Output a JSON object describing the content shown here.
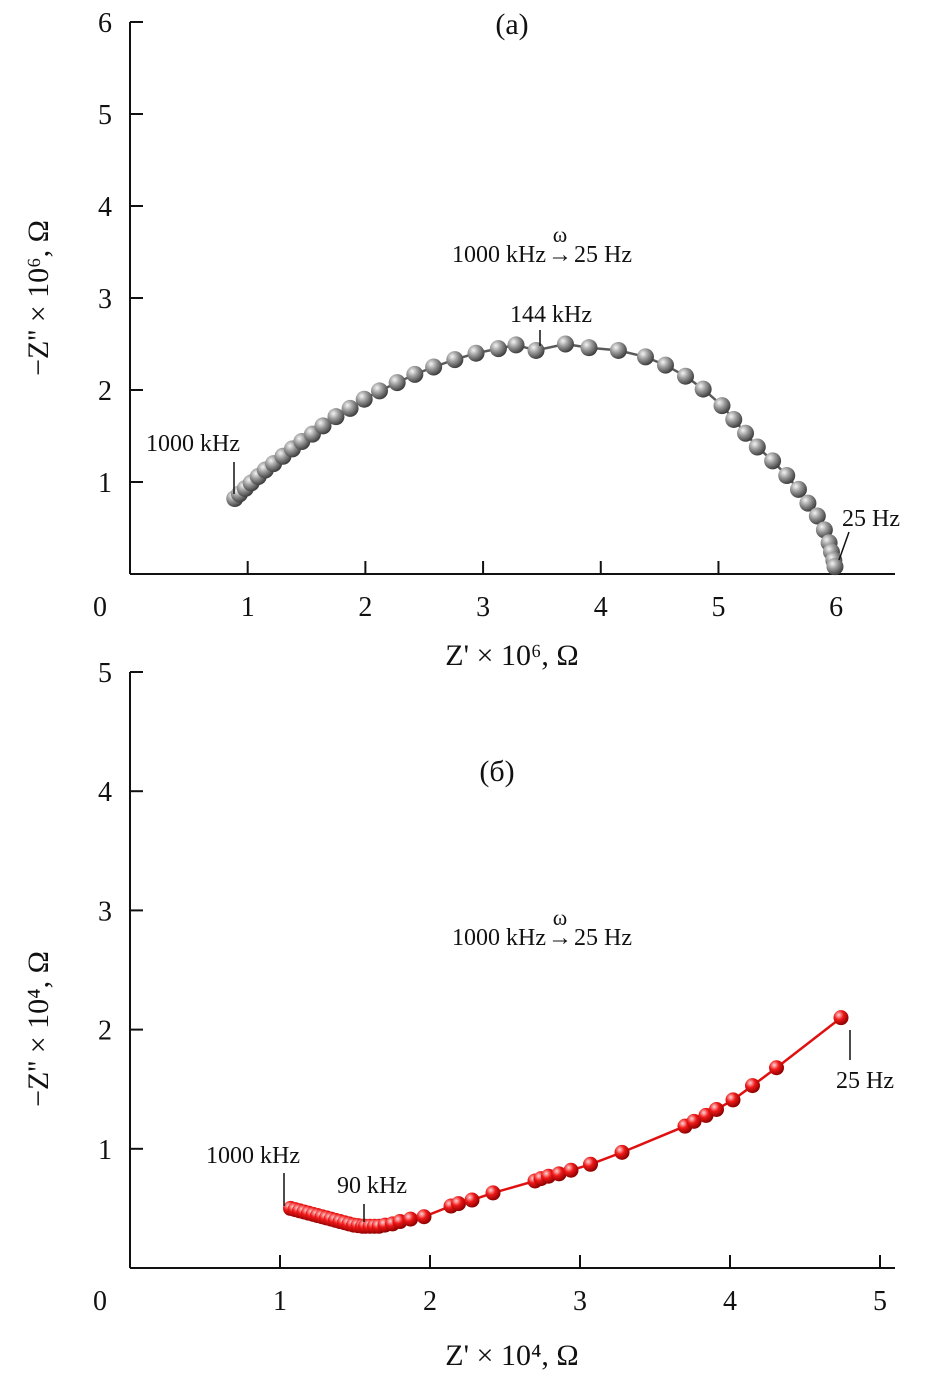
{
  "chart_data": [
    {
      "type": "scatter",
      "panel_label": "(a)",
      "xlabel": "Z' × 10⁶, Ω",
      "ylabel": "−Z'' × 10⁶, Ω",
      "xlim": [
        0,
        6.5
      ],
      "ylim": [
        0,
        6
      ],
      "origin_label": "0",
      "xticks": [
        1,
        2,
        3,
        4,
        5,
        6
      ],
      "yticks": [
        1,
        2,
        3,
        4,
        5,
        6
      ],
      "xtick_labels": [
        "1",
        "2",
        "3",
        "4",
        "5",
        "6"
      ],
      "ytick_labels": [
        "1",
        "2",
        "3",
        "4",
        "5",
        "6"
      ],
      "frequency_range": {
        "from": "1000 kHz",
        "arrow": "→",
        "to": "25 Hz",
        "symbol": "ω"
      },
      "annotations": [
        {
          "text": "1000 kHz",
          "x": 0.89,
          "y": 0.82
        },
        {
          "text": "144 kHz",
          "x": 3.45,
          "y": 2.43
        },
        {
          "text": "25 Hz",
          "x": 5.99,
          "y": 0.08
        }
      ],
      "series": [
        {
          "color": "#8a8a8a",
          "x": [
            0.89,
            0.93,
            0.98,
            1.03,
            1.09,
            1.15,
            1.22,
            1.3,
            1.38,
            1.46,
            1.55,
            1.64,
            1.75,
            1.87,
            1.99,
            2.12,
            2.27,
            2.42,
            2.58,
            2.76,
            2.94,
            3.13,
            3.28,
            3.45,
            3.7,
            3.9,
            4.15,
            4.38,
            4.55,
            4.72,
            4.87,
            5.03,
            5.13,
            5.23,
            5.33,
            5.46,
            5.58,
            5.68,
            5.76,
            5.84,
            5.9,
            5.94,
            5.96,
            5.98,
            5.99
          ],
          "y": [
            0.82,
            0.87,
            0.93,
            0.99,
            1.06,
            1.13,
            1.2,
            1.28,
            1.36,
            1.44,
            1.52,
            1.61,
            1.71,
            1.8,
            1.9,
            1.99,
            2.08,
            2.17,
            2.25,
            2.33,
            2.4,
            2.45,
            2.49,
            2.43,
            2.5,
            2.46,
            2.43,
            2.36,
            2.27,
            2.15,
            2.01,
            1.83,
            1.68,
            1.53,
            1.38,
            1.23,
            1.07,
            0.92,
            0.77,
            0.63,
            0.48,
            0.34,
            0.24,
            0.15,
            0.08
          ]
        }
      ]
    },
    {
      "type": "scatter",
      "panel_label": "(б)",
      "xlabel": "Z' × 10⁴, Ω",
      "ylabel": "−Z'' × 10⁴, Ω",
      "xlim": [
        0,
        5.1
      ],
      "ylim": [
        0,
        5
      ],
      "origin_label": "0",
      "xticks": [
        1,
        2,
        3,
        4,
        5
      ],
      "yticks": [
        1,
        2,
        3,
        4,
        5
      ],
      "xtick_labels": [
        "1",
        "2",
        "3",
        "4",
        "5"
      ],
      "ytick_labels": [
        "1",
        "2",
        "3",
        "4",
        "5"
      ],
      "frequency_range": {
        "from": "1000 kHz",
        "arrow": "→",
        "to": "25 Hz",
        "symbol": "ω"
      },
      "annotations": [
        {
          "text": "1000 kHz",
          "x": 1.07,
          "y": 0.5
        },
        {
          "text": "90 kHz",
          "x": 1.57,
          "y": 0.35
        },
        {
          "text": "25 Hz",
          "x": 4.74,
          "y": 2.1
        }
      ],
      "series": [
        {
          "color": "#e01010",
          "x": [
            1.07,
            1.1,
            1.13,
            1.16,
            1.19,
            1.22,
            1.25,
            1.28,
            1.31,
            1.34,
            1.37,
            1.4,
            1.43,
            1.46,
            1.49,
            1.52,
            1.55,
            1.57,
            1.6,
            1.63,
            1.66,
            1.7,
            1.75,
            1.8,
            1.87,
            1.96,
            2.14,
            2.19,
            2.28,
            2.42,
            2.7,
            2.74,
            2.79,
            2.86,
            2.94,
            3.07,
            3.28,
            3.7,
            3.76,
            3.84,
            3.91,
            4.02,
            4.15,
            4.31,
            4.74
          ],
          "y": [
            0.5,
            0.49,
            0.48,
            0.47,
            0.46,
            0.45,
            0.44,
            0.43,
            0.42,
            0.41,
            0.4,
            0.39,
            0.38,
            0.37,
            0.36,
            0.355,
            0.35,
            0.35,
            0.35,
            0.35,
            0.35,
            0.36,
            0.37,
            0.39,
            0.41,
            0.43,
            0.52,
            0.54,
            0.57,
            0.63,
            0.73,
            0.75,
            0.77,
            0.79,
            0.82,
            0.87,
            0.97,
            1.19,
            1.23,
            1.28,
            1.33,
            1.41,
            1.53,
            1.68,
            2.1
          ]
        }
      ]
    }
  ]
}
